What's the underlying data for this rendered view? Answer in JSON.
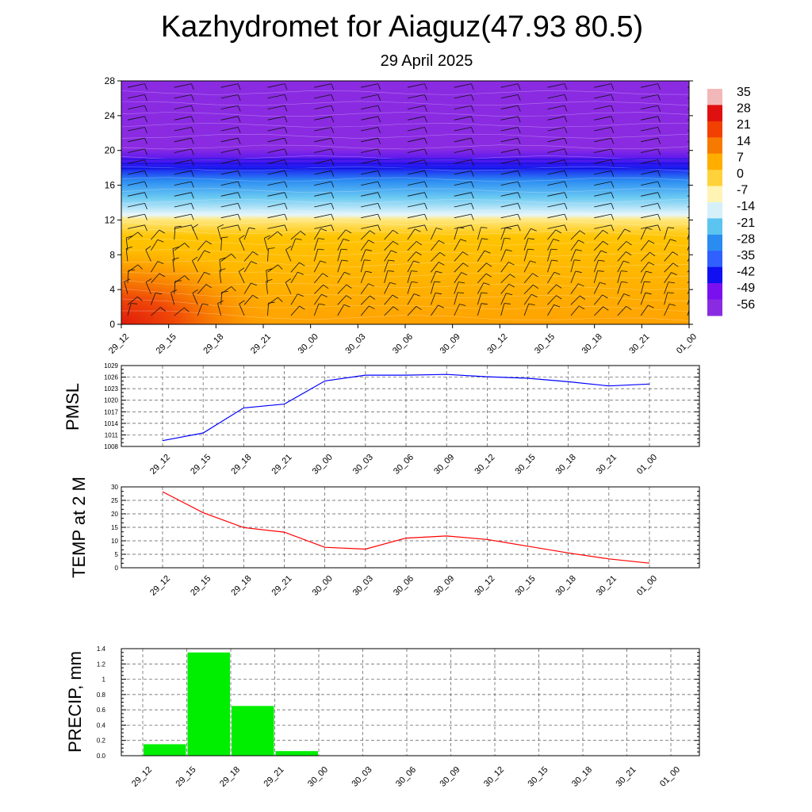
{
  "title": "Kazhydromet for Aiaguz(47.93 80.5)",
  "subtitle": "29 April 2025",
  "time_labels": [
    "29_12",
    "29_15",
    "29_18",
    "29_21",
    "30_00",
    "30_03",
    "30_06",
    "30_09",
    "30_12",
    "30_15",
    "30_18",
    "30_21",
    "01_00"
  ],
  "colorbar": {
    "labels": [
      "35",
      "28",
      "21",
      "14",
      "7",
      "0",
      "-7",
      "-14",
      "-21",
      "-28",
      "-35",
      "-42",
      "-49",
      "-56"
    ],
    "colors_top_to_bottom": [
      "#f2b8b8",
      "#e01010",
      "#f24000",
      "#f77a00",
      "#ffae00",
      "#ffd23c",
      "#fff4b4",
      "#d6f0fa",
      "#5cc4f0",
      "#2a8cf0",
      "#3060ff",
      "#1010f0",
      "#7a10f0",
      "#8a2be2"
    ]
  },
  "chart_data": [
    {
      "type": "heatmap",
      "title": "",
      "xlabel": "",
      "ylabel": "",
      "x": [
        "29_12",
        "29_15",
        "29_18",
        "29_21",
        "30_00",
        "30_03",
        "30_06",
        "30_09",
        "30_12",
        "30_15",
        "30_18",
        "30_21",
        "01_00"
      ],
      "y_ticks": [
        0,
        4,
        8,
        12,
        16,
        20,
        24,
        28
      ],
      "ylim": [
        0,
        28
      ],
      "variable": "temperature",
      "colorbar_range": [
        -56,
        35
      ],
      "surface_temperature": [
        28,
        22,
        17,
        14,
        10,
        9,
        11,
        12,
        10,
        8,
        6,
        4,
        2
      ],
      "freezing_level": 12.5,
      "tropopause_level": 18.5,
      "overlay": "wind barbs",
      "grid": false
    },
    {
      "type": "line",
      "ylabel": "PMSL",
      "x": [
        "29_12",
        "29_15",
        "29_18",
        "29_21",
        "30_00",
        "30_03",
        "30_06",
        "30_09",
        "30_12",
        "30_15",
        "30_18",
        "30_21",
        "01_00"
      ],
      "series": [
        {
          "color": "#0000ff",
          "values": [
            1009.5,
            1011.5,
            1018,
            1019,
            1025,
            1026.5,
            1026.5,
            1026.7,
            1026.1,
            1025.7,
            1024.8,
            1023.7,
            1024.2
          ]
        }
      ],
      "y_ticks": [
        1008,
        1011,
        1014,
        1017,
        1020,
        1023,
        1026,
        1029
      ],
      "ylim": [
        1008,
        1029
      ],
      "grid": true
    },
    {
      "type": "line",
      "ylabel": "TEMP at 2 M",
      "x": [
        "29_12",
        "29_15",
        "29_18",
        "29_21",
        "30_00",
        "30_03",
        "30_06",
        "30_09",
        "30_12",
        "30_15",
        "30_18",
        "30_21",
        "01_00"
      ],
      "series": [
        {
          "color": "#ff0000",
          "values": [
            28.2,
            20.4,
            14.9,
            13.2,
            7.6,
            6.9,
            11.0,
            11.8,
            10.5,
            8.0,
            5.5,
            3.3,
            1.7
          ]
        }
      ],
      "y_ticks": [
        0,
        5,
        10,
        15,
        20,
        25,
        30
      ],
      "ylim": [
        0,
        30
      ],
      "grid": true
    },
    {
      "type": "bar",
      "ylabel": "PRECIP, mm",
      "categories": [
        "29_12",
        "29_15",
        "29_18",
        "29_21",
        "30_00",
        "30_03",
        "30_06",
        "30_09",
        "30_12",
        "30_15",
        "30_18",
        "30_21",
        "01_00"
      ],
      "values": [
        0,
        0.15,
        1.35,
        0.65,
        0.06,
        0,
        0,
        0,
        0,
        0,
        0,
        0,
        0
      ],
      "color": "#00ee00",
      "y_ticks": [
        "0.0",
        "0.2",
        "0.4",
        "0.6",
        "0.8",
        "1",
        "1.2",
        "1.4"
      ],
      "ylim": [
        0,
        1.4
      ],
      "grid": true
    }
  ]
}
